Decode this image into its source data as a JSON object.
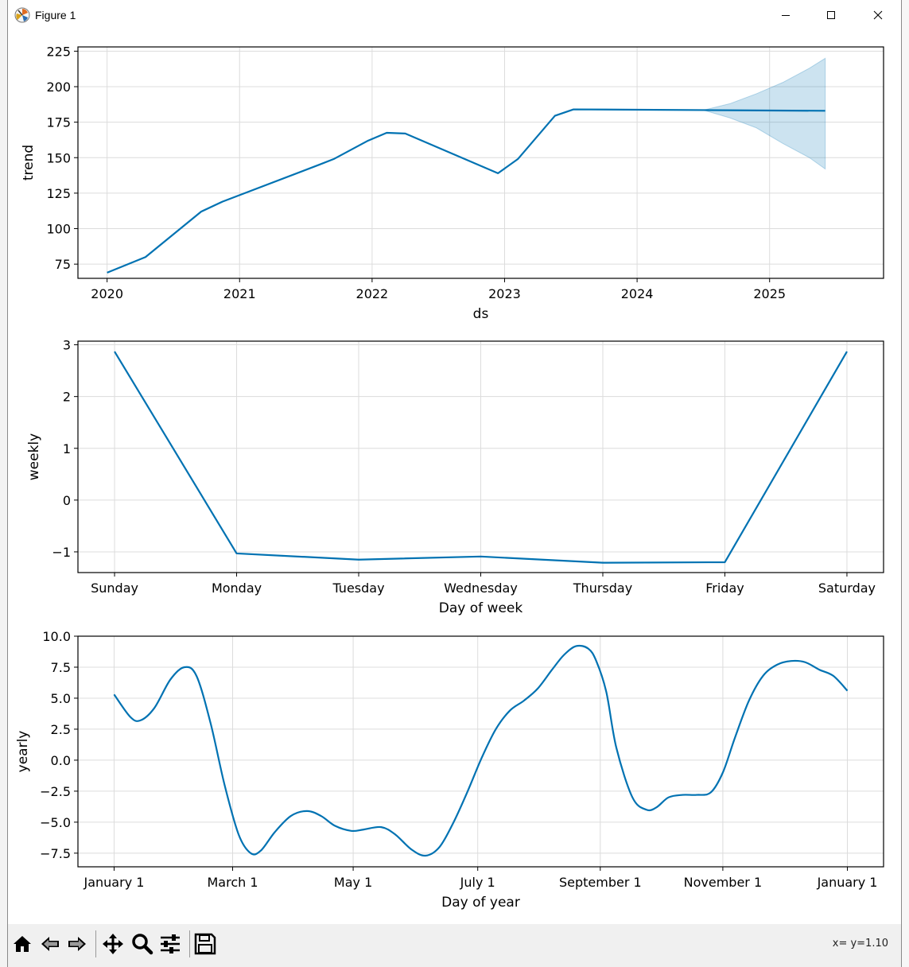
{
  "window": {
    "title": "Figure 1",
    "minimize_icon": "minimize-icon",
    "maximize_icon": "maximize-icon",
    "close_icon": "close-icon"
  },
  "toolbar": {
    "buttons": [
      "home-icon",
      "back-icon",
      "forward-icon",
      "pan-icon",
      "zoom-icon",
      "configure-subplots-icon",
      "save-icon"
    ],
    "coords": "x= y=1.10"
  },
  "colors": {
    "line": "#0072b2",
    "band": "#0072b2",
    "grid": "#dcdcdc",
    "toolbar_bg": "#f0f0f0"
  },
  "chart_data": [
    {
      "type": "line",
      "title": "",
      "xlabel": "ds",
      "ylabel": "trend",
      "x_ticks": [
        2020,
        2021,
        2022,
        2023,
        2024,
        2025
      ],
      "y_ticks": [
        75,
        100,
        125,
        150,
        175,
        200,
        225
      ],
      "xlim": [
        2019.78,
        2025.86
      ],
      "ylim": [
        65,
        228
      ],
      "grid": true,
      "x": [
        2020.0,
        2020.29,
        2020.71,
        2020.87,
        2021.6,
        2021.71,
        2021.97,
        2022.11,
        2022.25,
        2022.95,
        2023.1,
        2023.38,
        2023.52,
        2024.5,
        2025.42
      ],
      "y": [
        69,
        80,
        112,
        119,
        145,
        149,
        162,
        167.5,
        167,
        139,
        149,
        179.5,
        184,
        183.5,
        183
      ],
      "band": {
        "x": [
          2024.5,
          2024.7,
          2024.9,
          2025.1,
          2025.3,
          2025.42
        ],
        "upper": [
          183.5,
          188,
          195,
          203,
          213,
          220
        ],
        "lower": [
          183.5,
          178,
          171,
          160,
          150,
          142
        ]
      }
    },
    {
      "type": "line",
      "title": "",
      "xlabel": "Day of week",
      "ylabel": "weekly",
      "categories": [
        "Sunday",
        "Monday",
        "Tuesday",
        "Wednesday",
        "Thursday",
        "Friday",
        "Saturday"
      ],
      "values": [
        2.87,
        -1.03,
        -1.15,
        -1.09,
        -1.21,
        -1.2,
        2.87
      ],
      "y_ticks": [
        -1,
        0,
        1,
        2,
        3
      ],
      "y_tick_labels": [
        "−1",
        "0",
        "1",
        "2",
        "3"
      ],
      "xlim": [
        -0.3,
        6.3
      ],
      "ylim": [
        -1.4,
        3.07
      ],
      "grid": true
    },
    {
      "type": "line",
      "title": "",
      "xlabel": "Day of year",
      "ylabel": "yearly",
      "x_ticks": [
        0,
        59,
        119,
        181,
        242,
        303,
        365
      ],
      "x_tick_labels": [
        "January 1",
        "March 1",
        "May 1",
        "July 1",
        "September 1",
        "November 1",
        "January 1"
      ],
      "y_ticks": [
        -7.5,
        -5.0,
        -2.5,
        0.0,
        2.5,
        5.0,
        7.5,
        10.0
      ],
      "y_tick_labels": [
        "−7.5",
        "−5.0",
        "−2.5",
        "0.0",
        "2.5",
        "5.0",
        "7.5",
        "10.0"
      ],
      "xlim": [
        -18,
        383
      ],
      "ylim": [
        -8.6,
        10.0
      ],
      "grid": true,
      "x": [
        0,
        8,
        13,
        20,
        28,
        35,
        41,
        48,
        55,
        62,
        68,
        73,
        80,
        88,
        96,
        103,
        110,
        118,
        124,
        133,
        140,
        148,
        155,
        162,
        169,
        176,
        183,
        190,
        197,
        204,
        211,
        218,
        224,
        230,
        236,
        240,
        245,
        250,
        258,
        265,
        270,
        276,
        283,
        290,
        297,
        303,
        309,
        316,
        323,
        330,
        337,
        344,
        351,
        358,
        365
      ],
      "y": [
        5.3,
        3.5,
        3.2,
        4.2,
        6.5,
        7.5,
        6.8,
        3.0,
        -2.0,
        -6.0,
        -7.5,
        -7.3,
        -5.8,
        -4.5,
        -4.1,
        -4.5,
        -5.3,
        -5.7,
        -5.6,
        -5.4,
        -6.0,
        -7.2,
        -7.7,
        -7.0,
        -5.0,
        -2.5,
        0.2,
        2.5,
        4.0,
        4.8,
        5.8,
        7.3,
        8.5,
        9.2,
        9.0,
        8.0,
        5.5,
        1.0,
        -3.0,
        -4.0,
        -3.8,
        -3.0,
        -2.8,
        -2.8,
        -2.6,
        -1.0,
        1.8,
        4.8,
        6.8,
        7.7,
        8.0,
        7.9,
        7.3,
        6.8,
        5.6
      ]
    }
  ]
}
